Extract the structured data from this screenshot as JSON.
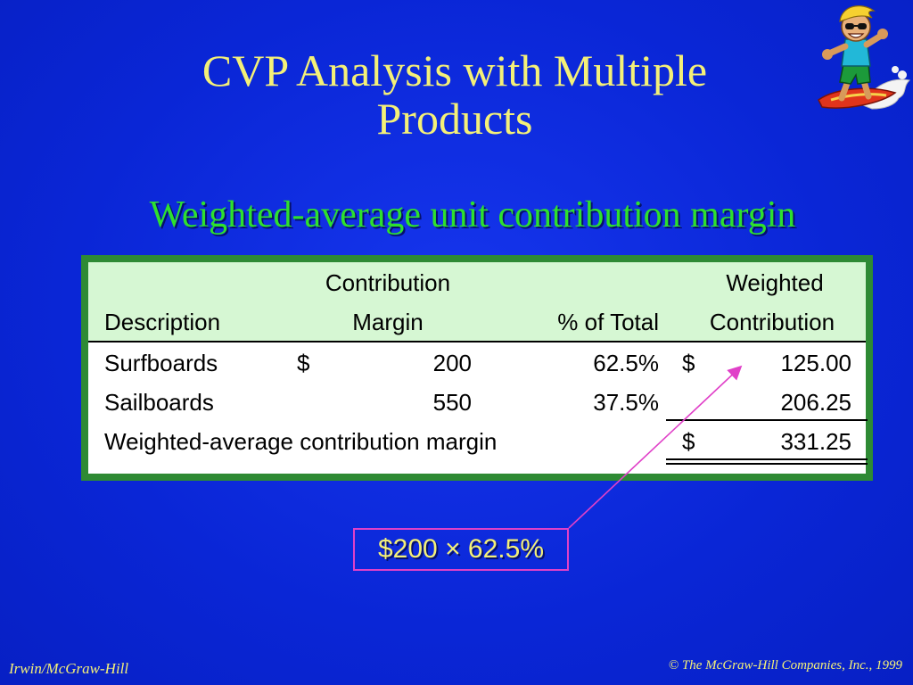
{
  "slide": {
    "title_line1": "CVP Analysis with Multiple",
    "title_line2": "Products",
    "subtitle": "Weighted-average unit contribution margin"
  },
  "table": {
    "headers": {
      "description": "Description",
      "cm_top": "Contribution",
      "cm_bottom": "Margin",
      "pct": "% of Total",
      "wc_top": "Weighted",
      "wc_bottom": "Contribution"
    },
    "rows": [
      {
        "description": "Surfboards",
        "cm_dollar": "$",
        "cm": "200",
        "pct": "62.5%",
        "wc_dollar": "$",
        "wc": "125.00"
      },
      {
        "description": "Sailboards",
        "cm_dollar": "",
        "cm": "550",
        "pct": "37.5%",
        "wc_dollar": "",
        "wc": "206.25"
      }
    ],
    "total": {
      "label": "Weighted-average contribution margin",
      "dollar": "$",
      "value": "331.25"
    }
  },
  "callout": {
    "text": "$200 ×  62.5%"
  },
  "footer": {
    "left": "Irwin/McGraw-Hill",
    "right": "© The McGraw-Hill Companies, Inc., 1999"
  },
  "colors": {
    "background": "#0a28d8",
    "title": "#f4f078",
    "subtitle": "#2ee02e",
    "table_border": "#2e8a34",
    "header_band": "#d6f7d3",
    "callout_border": "#e040c8"
  },
  "icons": {
    "clipart": "surfer-clipart-icon"
  }
}
